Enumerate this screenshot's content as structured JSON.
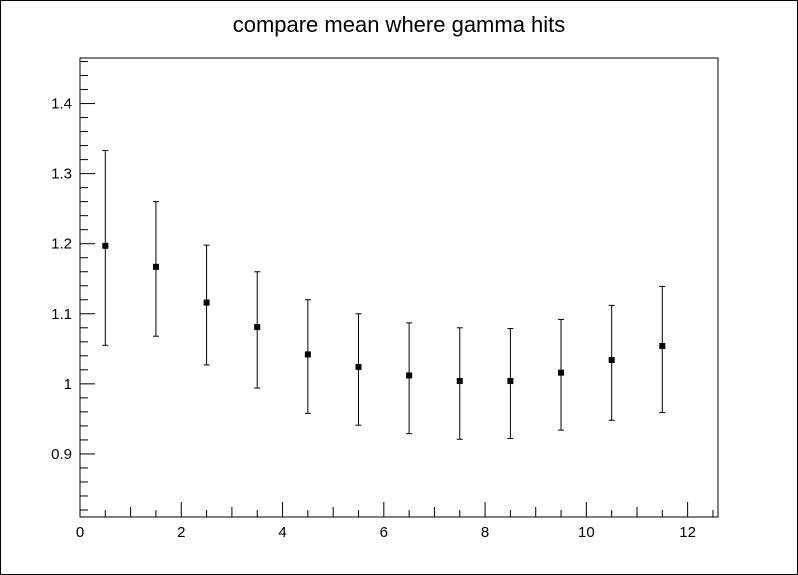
{
  "chart_data": {
    "type": "scatter",
    "title": "compare mean where gamma hits",
    "xlabel": "",
    "ylabel": "",
    "xlim": [
      0,
      12.6
    ],
    "ylim": [
      0.81,
      1.465
    ],
    "x_ticks": [
      0,
      2,
      4,
      6,
      8,
      10,
      12
    ],
    "y_ticks": [
      0.9,
      1,
      1.1,
      1.2,
      1.3,
      1.4
    ],
    "x_tick_labels": [
      "0",
      "2",
      "4",
      "6",
      "8",
      "10",
      "12"
    ],
    "y_tick_labels": [
      "0.9",
      "1",
      "1.1",
      "1.2",
      "1.3",
      "1.4"
    ],
    "grid": false,
    "legend": "none",
    "marker_color": "#000000",
    "points": [
      {
        "x": 0.5,
        "y": 1.197,
        "ylow": 1.055,
        "yhigh": 1.333
      },
      {
        "x": 1.5,
        "y": 1.167,
        "ylow": 1.068,
        "yhigh": 1.26
      },
      {
        "x": 2.5,
        "y": 1.116,
        "ylow": 1.027,
        "yhigh": 1.198
      },
      {
        "x": 3.5,
        "y": 1.081,
        "ylow": 0.994,
        "yhigh": 1.16
      },
      {
        "x": 4.5,
        "y": 1.042,
        "ylow": 0.958,
        "yhigh": 1.12
      },
      {
        "x": 5.5,
        "y": 1.024,
        "ylow": 0.941,
        "yhigh": 1.1
      },
      {
        "x": 6.5,
        "y": 1.012,
        "ylow": 0.929,
        "yhigh": 1.087
      },
      {
        "x": 7.5,
        "y": 1.004,
        "ylow": 0.921,
        "yhigh": 1.08
      },
      {
        "x": 8.5,
        "y": 1.004,
        "ylow": 0.922,
        "yhigh": 1.079
      },
      {
        "x": 9.5,
        "y": 1.016,
        "ylow": 0.934,
        "yhigh": 1.092
      },
      {
        "x": 10.5,
        "y": 1.034,
        "ylow": 0.948,
        "yhigh": 1.112
      },
      {
        "x": 11.5,
        "y": 1.054,
        "ylow": 0.959,
        "yhigh": 1.139
      }
    ]
  }
}
